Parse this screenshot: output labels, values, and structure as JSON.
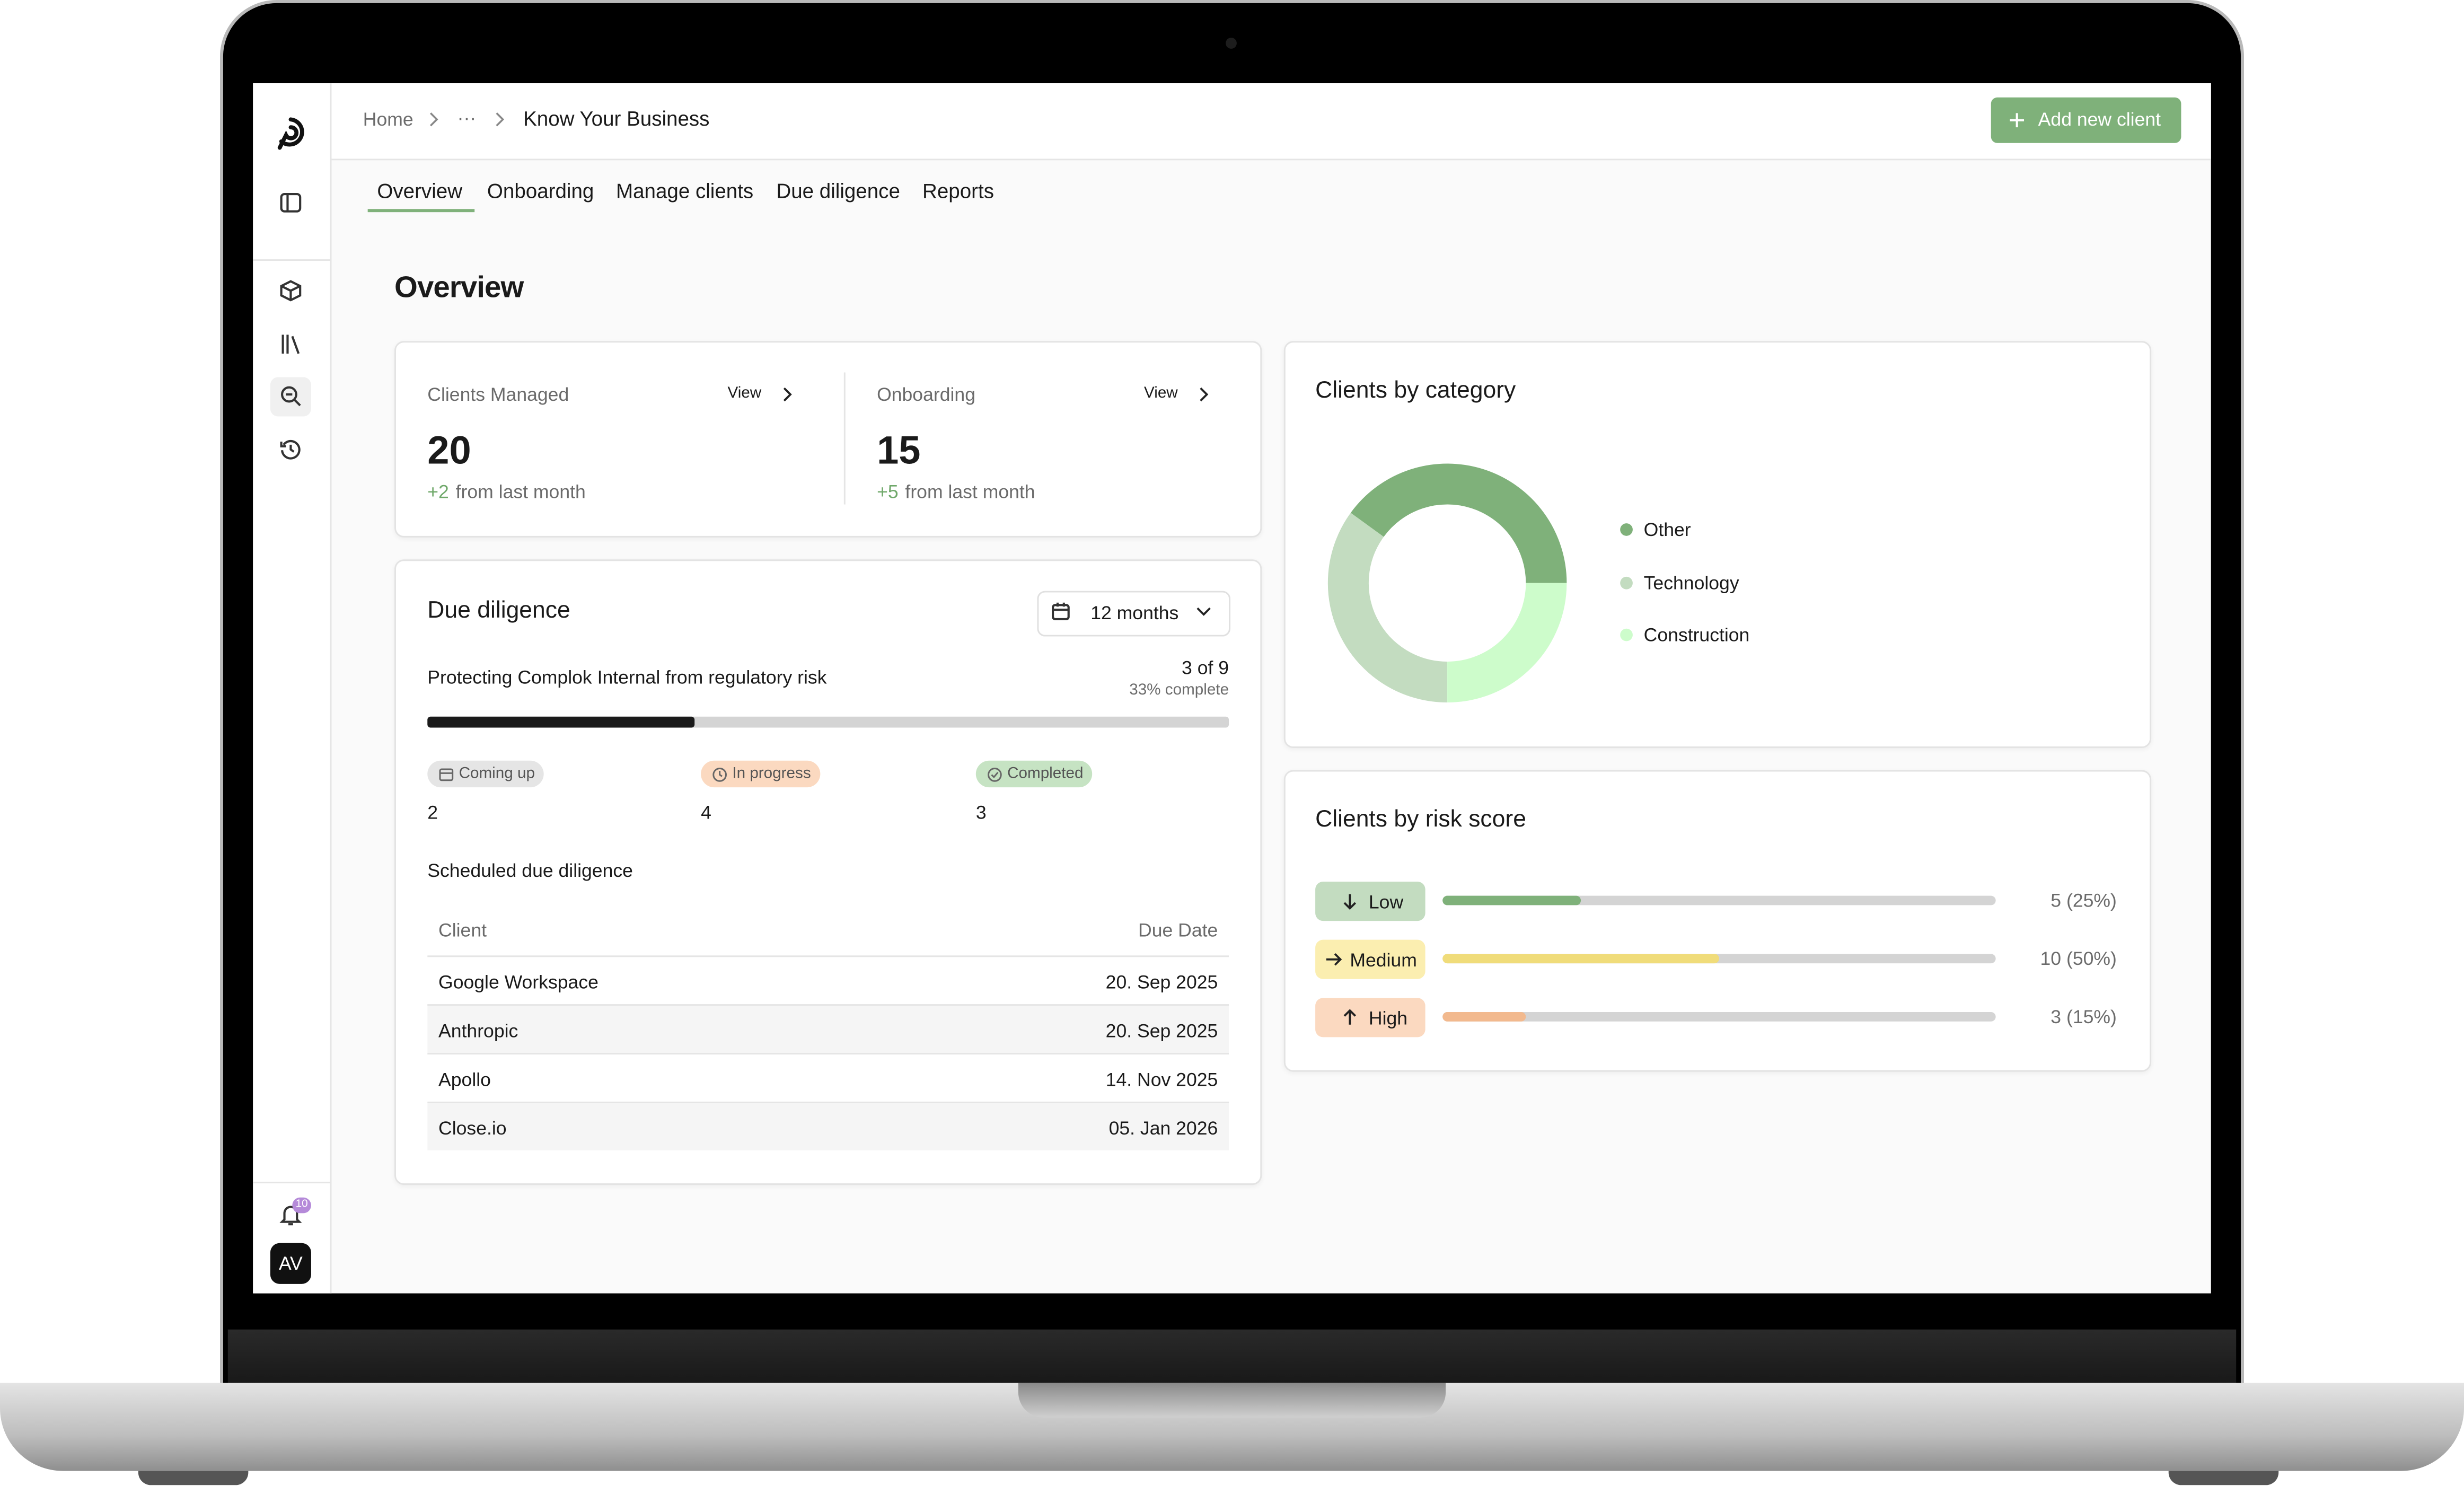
{
  "breadcrumb": {
    "home": "Home",
    "ellipsis": "···",
    "current": "Know Your Business"
  },
  "header": {
    "button": "Add new client"
  },
  "tabs": [
    "Overview",
    "Onboarding",
    "Manage clients",
    "Due diligence",
    "Reports"
  ],
  "page_title": "Overview",
  "stats": [
    {
      "label": "Clients Managed",
      "link": "View",
      "value": 20,
      "change": "+2",
      "change_note": "from last month"
    },
    {
      "label": "Onboarding",
      "link": "View",
      "value": 15,
      "change": "+5",
      "change_note": "from last month"
    }
  ],
  "due_diligence": {
    "title": "Due diligence",
    "period": "12 months",
    "task": "Protecting Complok Internal from regulatory risk",
    "progress_label": "3 of 9",
    "progress_done": 3,
    "progress_total": 9,
    "percent_label": "33% complete",
    "statuses": [
      {
        "label": "Coming up",
        "count": 2
      },
      {
        "label": "In progress",
        "count": 4
      },
      {
        "label": "Completed",
        "count": 3
      }
    ],
    "scheduled_title": "Scheduled due diligence",
    "table": {
      "columns": [
        "Client",
        "Due Date"
      ],
      "rows": [
        [
          "Google Workspace",
          "20. Sep 2025"
        ],
        [
          "Anthropic",
          "20. Sep 2025"
        ],
        [
          "Apollo",
          "14. Nov 2025"
        ],
        [
          "Close.io",
          "05. Jan 2026"
        ]
      ]
    }
  },
  "chart_data": [
    {
      "type": "donut",
      "title": "Clients by category",
      "categories": [
        "Other",
        "Technology",
        "Construction"
      ],
      "values": [
        40,
        35,
        25
      ],
      "colors": [
        "#7fb17a",
        "#c3dcc0",
        "#cdfccb"
      ]
    },
    {
      "type": "bar",
      "orientation": "horizontal",
      "title": "Clients by risk score",
      "categories": [
        "Low",
        "Medium",
        "High"
      ],
      "values": [
        5,
        10,
        3
      ],
      "value_labels": [
        "5 (25%)",
        "10 (50%)",
        "3 (15%)"
      ],
      "xlim": [
        0,
        20
      ],
      "colors": [
        "#7fb17a",
        "#f0dc7a",
        "#f2b98e"
      ],
      "badge_colors": [
        "#c3dcc0",
        "#fbeeb0",
        "#fbd9c0"
      ]
    }
  ],
  "notifications": 10,
  "avatar": "AV"
}
